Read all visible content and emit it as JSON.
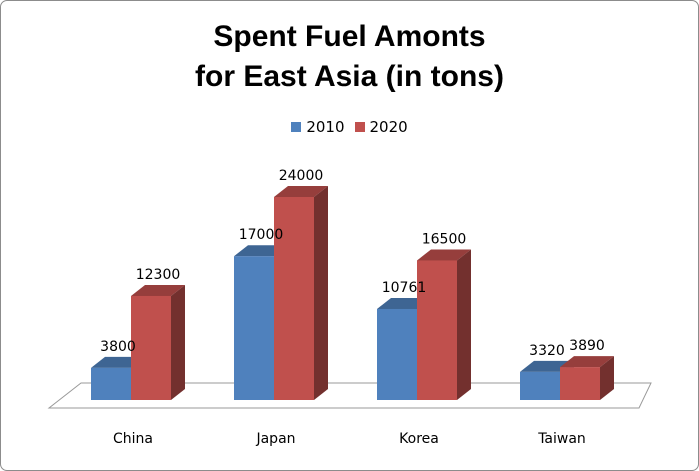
{
  "chart_data": {
    "type": "bar",
    "title_line1": "Spent Fuel Amonts",
    "title_line2": "for East Asia (in tons)",
    "categories": [
      "China",
      "Japan",
      "Korea",
      "Taiwan"
    ],
    "series": [
      {
        "name": "2010",
        "values": [
          3800,
          17000,
          10761,
          3320
        ],
        "labels": [
          "3800",
          "17000",
          "10761",
          "3320"
        ],
        "color": "#4F81BD"
      },
      {
        "name": "2020",
        "values": [
          12300,
          24000,
          16500,
          3890
        ],
        "labels": [
          "12300",
          "24000",
          "16500",
          "3890"
        ],
        "color": "#C0504D"
      }
    ],
    "ylim": [
      0,
      24000
    ],
    "legend_position": "top",
    "grid": false,
    "style": "3d-clustered-column"
  }
}
